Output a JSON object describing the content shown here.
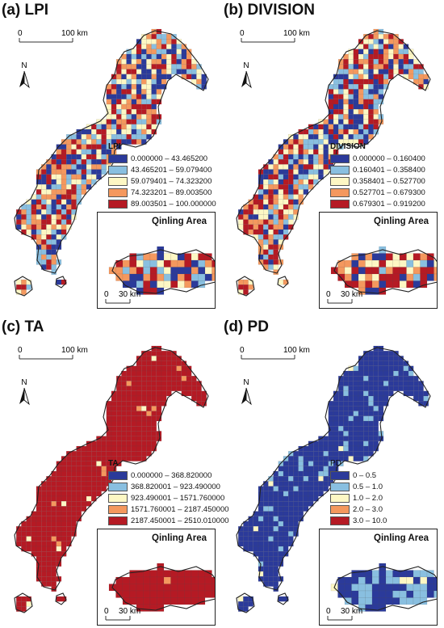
{
  "panels": [
    {
      "id": "a",
      "title": "(a) LPI",
      "legend_title": "LPI",
      "legend_title_bold": true,
      "classes": [
        {
          "label": "0.000000 – 43.465200",
          "color": "#2b3a9a"
        },
        {
          "label": "43.465201 – 59.079400",
          "color": "#89bfe0"
        },
        {
          "label": "59.079401 – 74.323200",
          "color": "#fdf7c4"
        },
        {
          "label": "74.323201 – 89.003500",
          "color": "#f4985e"
        },
        {
          "label": "89.003501 – 100.000000",
          "color": "#b51a24"
        }
      ],
      "mix": [
        0.22,
        0.18,
        0.2,
        0.2,
        0.2
      ],
      "inset_mix": [
        0.25,
        0.15,
        0.15,
        0.2,
        0.25
      ],
      "scale_main": {
        "start": "0",
        "end": "100 km"
      },
      "scale_inset": {
        "start": "0",
        "end": "30 km"
      },
      "north": "N",
      "inset_title": "Qinling Area"
    },
    {
      "id": "b",
      "title": "(b) DIVISION",
      "legend_title": "DIVISION",
      "legend_title_bold": true,
      "classes": [
        {
          "label": "0.000000 – 0.160400",
          "color": "#2b3a9a"
        },
        {
          "label": "0.160401 – 0.358400",
          "color": "#89bfe0"
        },
        {
          "label": "0.358401 – 0.527700",
          "color": "#fdf7c4"
        },
        {
          "label": "0.527701 – 0.679300",
          "color": "#f4985e"
        },
        {
          "label": "0.679301 – 0.919200",
          "color": "#b51a24"
        }
      ],
      "mix": [
        0.2,
        0.18,
        0.2,
        0.2,
        0.22
      ],
      "inset_mix": [
        0.15,
        0.15,
        0.2,
        0.2,
        0.3
      ],
      "scale_main": {
        "start": "0",
        "end": "100 km"
      },
      "scale_inset": {
        "start": "0",
        "end": "30 km"
      },
      "north": "N",
      "inset_title": "Qinling Area"
    },
    {
      "id": "c",
      "title": "(c) TA",
      "legend_title": "TA",
      "legend_title_bold": true,
      "classes": [
        {
          "label": "0.000000 – 368.820000",
          "color": "#2b3a9a"
        },
        {
          "label": "368.820001 – 923.490000",
          "color": "#89bfe0"
        },
        {
          "label": "923.490001 – 1571.760000",
          "color": "#fdf7c4"
        },
        {
          "label": "1571.760001 – 2187.450000",
          "color": "#f4985e"
        },
        {
          "label": "2187.450001 – 2510.010000",
          "color": "#b51a24"
        }
      ],
      "mix": [
        0.0,
        0.0,
        0.01,
        0.02,
        0.97
      ],
      "inset_mix": [
        0.0,
        0.0,
        0.01,
        0.02,
        0.97
      ],
      "scale_main": {
        "start": "0",
        "end": "100 km"
      },
      "scale_inset": {
        "start": "0",
        "end": "30 km"
      },
      "north": "N",
      "inset_title": "Qinling Area"
    },
    {
      "id": "d",
      "title": "(d) PD",
      "legend_title": "PD",
      "legend_title_bold": false,
      "classes": [
        {
          "label": "0 – 0.5",
          "color": "#2b3a9a"
        },
        {
          "label": "0.5 – 1.0",
          "color": "#89bfe0"
        },
        {
          "label": "1.0 – 2.0",
          "color": "#fdf7c4"
        },
        {
          "label": "2.0 – 3.0",
          "color": "#f4985e"
        },
        {
          "label": "3.0 – 10.0",
          "color": "#b51a24"
        }
      ],
      "mix": [
        0.85,
        0.13,
        0.02,
        0.0,
        0.0
      ],
      "inset_mix": [
        0.5,
        0.45,
        0.05,
        0.0,
        0.0
      ],
      "scale_main": {
        "start": "0",
        "end": "100 km"
      },
      "scale_inset": {
        "start": "0",
        "end": "30 km"
      },
      "north": "N",
      "inset_title": "Qinling Area"
    }
  ]
}
